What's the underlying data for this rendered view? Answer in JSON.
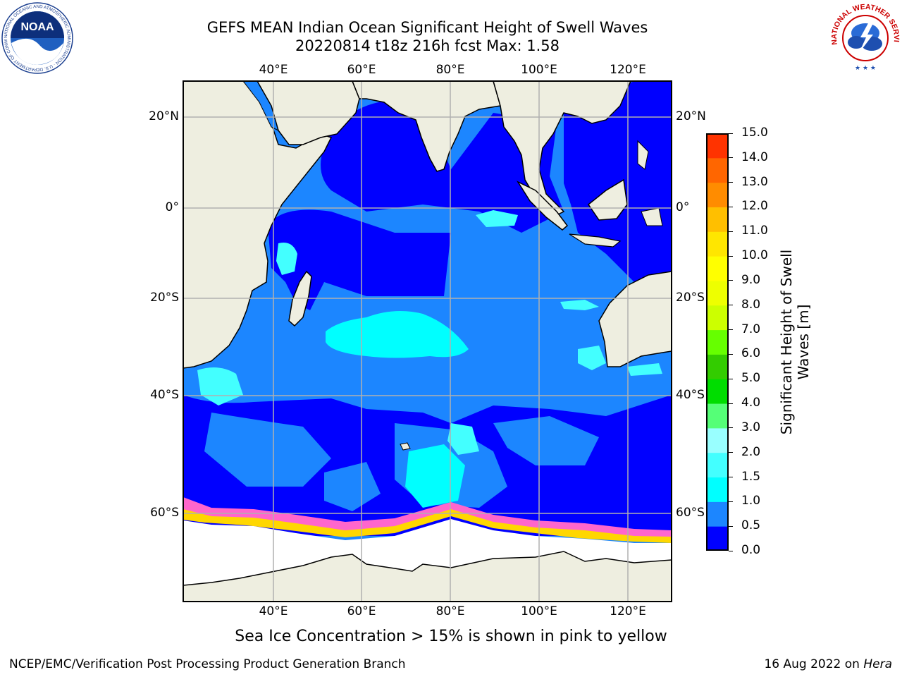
{
  "title": {
    "line1": "GEFS MEAN Indian Ocean Significant Height of Swell Waves",
    "line2": "20220814 t18z 216h fcst   Max: 1.58"
  },
  "logos": {
    "noaa_text": "NOAA",
    "noaa_ring": "NATIONAL OCEANIC AND ATMOSPHERIC ADMINISTRATION · U.S. DEPARTMENT OF COMMERCE",
    "nws_ring": "NATIONAL WEATHER SERVICE"
  },
  "map": {
    "top_lon_labels": [
      "40°E",
      "60°E",
      "80°E",
      "100°E",
      "120°E"
    ],
    "bottom_lon_labels": [
      "40°E",
      "60°E",
      "80°E",
      "100°E",
      "120°E"
    ],
    "left_lat_labels": [
      "20°N",
      "0°",
      "20°S",
      "40°S",
      "60°S"
    ],
    "right_lat_labels": [
      "20°N",
      "0°",
      "20°S",
      "40°S",
      "60°S"
    ],
    "colors": {
      "land": "#eeeee0",
      "ocean_deep": "#0000ff",
      "ocean_mid": "#1c86ff",
      "ocean_light": "#00ffff",
      "ocean_paler": "#43ffff",
      "ice": "#ffffff",
      "ice_edge": [
        "#ff66cc",
        "#ff99ff",
        "#ffd700",
        "#ffa500"
      ],
      "grid": "#b0b0b0"
    }
  },
  "colorbar": {
    "label_line1": "Significant Height of Swell",
    "label_line2": "Waves [m]",
    "ticks": [
      "15.0",
      "14.0",
      "13.0",
      "12.0",
      "11.0",
      "10.0",
      "9.0",
      "8.0",
      "7.0",
      "6.0",
      "5.0",
      "4.0",
      "3.0",
      "2.0",
      "1.5",
      "1.0",
      "0.5",
      "0.0"
    ],
    "colors_bottom_to_top": [
      "#0000ff",
      "#1c86ff",
      "#00ffff",
      "#43ffff",
      "#99ffff",
      "#55ff77",
      "#00dd00",
      "#33cc00",
      "#66ff00",
      "#ccff00",
      "#eeff00",
      "#ffff00",
      "#ffe600",
      "#ffbf00",
      "#ff8c00",
      "#ff6600",
      "#ff3300",
      "#ff0000"
    ]
  },
  "caption": "Sea Ice Concentration > 15% is shown in pink to yellow",
  "footer": {
    "left": "NCEP/EMC/Verification Post Processing Product Generation Branch",
    "date": "16 Aug 2022 on ",
    "machine": "Hera"
  }
}
